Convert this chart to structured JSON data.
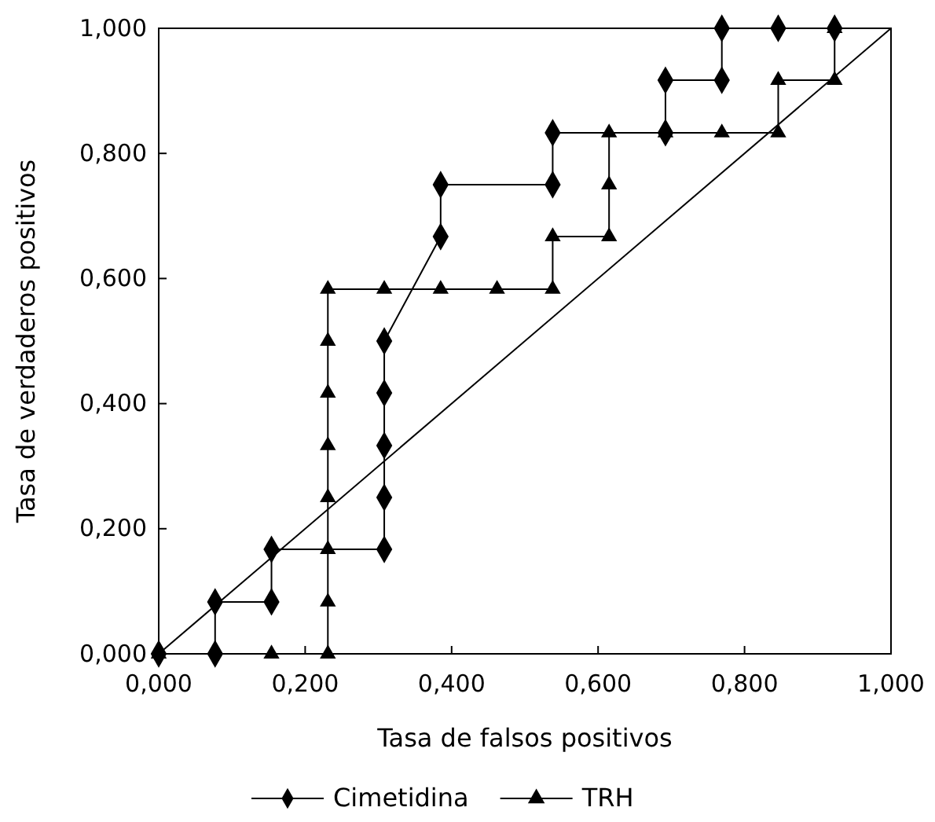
{
  "chart_data": {
    "type": "line",
    "xlabel": "Tasa de falsos positivos",
    "ylabel": "Tasa de verdaderos positivos",
    "xlim": [
      0,
      1
    ],
    "ylim": [
      0,
      1
    ],
    "xticks": [
      {
        "value": 0,
        "label": "0,000"
      },
      {
        "value": 0.2,
        "label": "0,200"
      },
      {
        "value": 0.4,
        "label": "0,400"
      },
      {
        "value": 0.6,
        "label": "0,600"
      },
      {
        "value": 0.8,
        "label": "0,800"
      },
      {
        "value": 1,
        "label": "1,000"
      }
    ],
    "yticks": [
      {
        "value": 0,
        "label": "0,000"
      },
      {
        "value": 0.2,
        "label": "0,200"
      },
      {
        "value": 0.4,
        "label": "0,400"
      },
      {
        "value": 0.6,
        "label": "0,600"
      },
      {
        "value": 0.8,
        "label": "0,800"
      },
      {
        "value": 1,
        "label": "1,000"
      }
    ],
    "grid": false,
    "legend": "bottom",
    "series": [
      {
        "name": "Cimetidina",
        "color": "#000000",
        "marker": "diamond",
        "x": [
          0,
          0.077,
          0.077,
          0.154,
          0.154,
          0.308,
          0.308,
          0.308,
          0.308,
          0.308,
          0.385,
          0.385,
          0.538,
          0.538,
          0.692,
          0.692,
          0.769,
          0.769,
          0.846,
          0.923
        ],
        "values": [
          0,
          0,
          0.083,
          0.083,
          0.167,
          0.167,
          0.25,
          0.333,
          0.417,
          0.5,
          0.667,
          0.75,
          0.75,
          0.833,
          0.833,
          0.917,
          0.917,
          1,
          1,
          1
        ]
      },
      {
        "name": "TRH",
        "color": "#000000",
        "marker": "triangle",
        "x": [
          0,
          0.154,
          0.231,
          0.231,
          0.231,
          0.231,
          0.231,
          0.231,
          0.231,
          0.231,
          0.308,
          0.385,
          0.462,
          0.538,
          0.538,
          0.615,
          0.615,
          0.615,
          0.692,
          0.769,
          0.846,
          0.846,
          0.923,
          0.923
        ],
        "values": [
          0,
          0,
          0,
          0.083,
          0.167,
          0.25,
          0.333,
          0.417,
          0.5,
          0.583,
          0.583,
          0.583,
          0.583,
          0.583,
          0.667,
          0.667,
          0.75,
          0.833,
          0.833,
          0.833,
          0.833,
          0.917,
          0.917,
          1
        ]
      },
      {
        "color": "#000000",
        "marker": "none",
        "x": [
          0,
          1
        ],
        "values": [
          0,
          1
        ]
      }
    ]
  }
}
